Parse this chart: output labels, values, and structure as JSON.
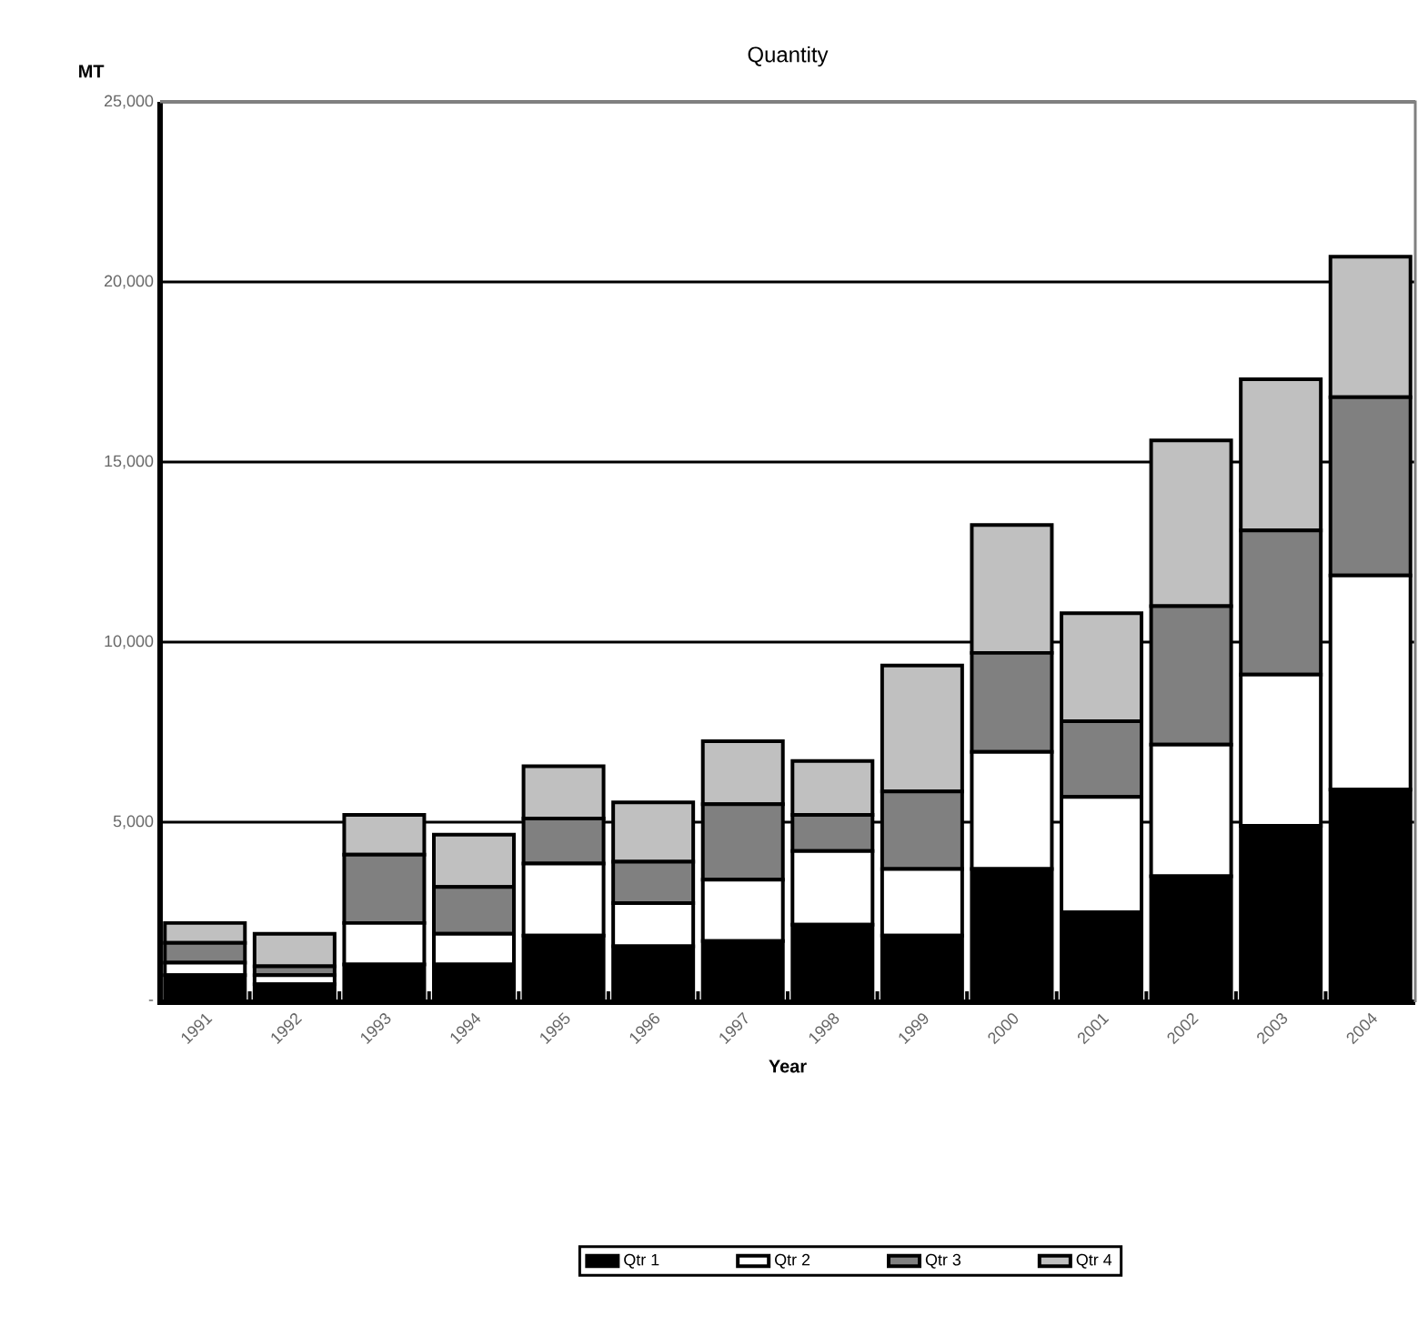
{
  "chart_data": {
    "type": "bar",
    "title": "Quantity",
    "xlabel": "Year",
    "ylabel": "MT",
    "categories": [
      "1991",
      "1992",
      "1993",
      "1994",
      "1995",
      "1996",
      "1997",
      "1998",
      "1999",
      "2000",
      "2001",
      "2002",
      "2003",
      "2004"
    ],
    "stacked": true,
    "series": [
      {
        "name": "Qtr 1",
        "color": "#000000",
        "values": [
          750,
          500,
          1050,
          1050,
          1850,
          1550,
          1700,
          2150,
          1850,
          3700,
          2500,
          3500,
          4900,
          5900
        ]
      },
      {
        "name": "Qtr 2",
        "color": "#ffffff",
        "values": [
          350,
          250,
          1150,
          850,
          2000,
          1200,
          1700,
          2050,
          1850,
          3250,
          3200,
          3650,
          4200,
          5950
        ]
      },
      {
        "name": "Qtr 3",
        "color": "#808080",
        "values": [
          550,
          250,
          1900,
          1300,
          1250,
          1150,
          2100,
          1000,
          2150,
          2750,
          2100,
          3850,
          4000,
          4950
        ]
      },
      {
        "name": "Qtr 4",
        "color": "#c0c0c0",
        "values": [
          550,
          900,
          1100,
          1450,
          1450,
          1650,
          1750,
          1500,
          3500,
          3550,
          3000,
          4600,
          4200,
          3900
        ]
      }
    ],
    "ylim": [
      0,
      25000
    ],
    "yticks": [
      {
        "value": 0,
        "label": "-"
      },
      {
        "value": 5000,
        "label": "5,000"
      },
      {
        "value": 10000,
        "label": "10,000"
      },
      {
        "value": 15000,
        "label": "15,000"
      },
      {
        "value": 20000,
        "label": "20,000"
      },
      {
        "value": 25000,
        "label": "25,000"
      }
    ],
    "grid": "y",
    "legend": "bottom"
  }
}
